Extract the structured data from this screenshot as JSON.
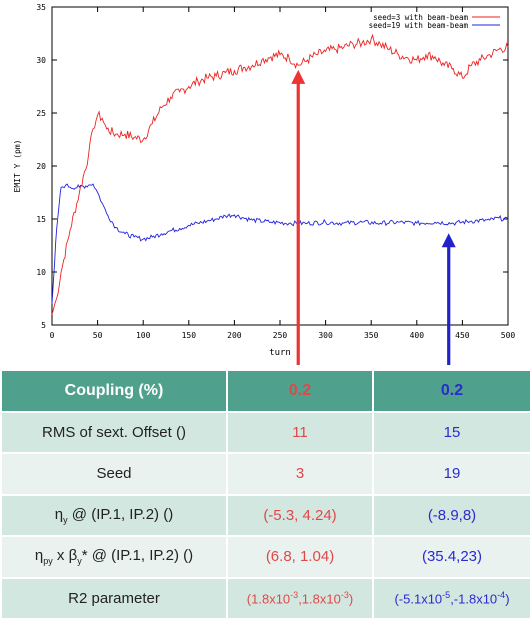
{
  "chart_data": {
    "type": "line",
    "xlabel": "turn",
    "ylabel": "EMIT Y (pm)",
    "xlim": [
      0,
      500
    ],
    "ylim": [
      5,
      35
    ],
    "xticks": [
      0,
      50,
      100,
      150,
      200,
      250,
      300,
      350,
      400,
      450,
      500
    ],
    "yticks": [
      5,
      10,
      15,
      20,
      25,
      30,
      35
    ],
    "grid": false,
    "legend_position": "top-right",
    "series": [
      {
        "name": "seed=3 with beam-beam",
        "color": "#ee2222",
        "x": [
          0,
          5,
          10,
          20,
          30,
          40,
          45,
          50,
          55,
          60,
          70,
          80,
          90,
          100,
          110,
          120,
          130,
          140,
          150,
          160,
          170,
          180,
          190,
          200,
          210,
          220,
          230,
          240,
          250,
          260,
          270,
          280,
          290,
          300,
          310,
          320,
          330,
          340,
          350,
          360,
          370,
          380,
          390,
          400,
          410,
          420,
          430,
          440,
          450,
          460,
          470,
          480,
          490,
          500
        ],
        "y": [
          6,
          7.5,
          10,
          14,
          17.5,
          21,
          23.5,
          24.8,
          24.5,
          23.5,
          23,
          23,
          22.7,
          22.5,
          24,
          25.5,
          26.5,
          27,
          27.5,
          28,
          28.3,
          28.5,
          28.8,
          29,
          29.3,
          29.5,
          30,
          30.3,
          30.5,
          30.2,
          29.5,
          30,
          30.5,
          30.8,
          31,
          31.2,
          31.5,
          31.6,
          32,
          31.5,
          31,
          30.5,
          30.2,
          30,
          30.5,
          30.3,
          29.5,
          29.2,
          28.3,
          29.5,
          30,
          30.5,
          31,
          31.2
        ]
      },
      {
        "name": "seed=19 with beam-beam",
        "color": "#2222dd",
        "x": [
          0,
          3,
          5,
          8,
          10,
          15,
          20,
          30,
          40,
          45,
          50,
          55,
          60,
          70,
          80,
          90,
          100,
          110,
          120,
          130,
          140,
          150,
          160,
          170,
          180,
          190,
          200,
          210,
          220,
          240,
          260,
          280,
          300,
          320,
          340,
          360,
          380,
          400,
          420,
          440,
          460,
          480,
          490,
          500
        ],
        "y": [
          7,
          11,
          14,
          16.5,
          18,
          18.2,
          18,
          18,
          18.2,
          18.3,
          17.5,
          16.5,
          15.5,
          14.2,
          13.6,
          13.3,
          13.1,
          13.3,
          13.6,
          13.9,
          14.1,
          14.4,
          14.6,
          14.8,
          15,
          15.3,
          15.4,
          15.1,
          14.9,
          14.7,
          14.6,
          14.6,
          14.7,
          14.6,
          14.7,
          14.6,
          14.7,
          14.6,
          14.7,
          14.6,
          14.8,
          14.9,
          15.1,
          14.9
        ]
      }
    ],
    "annotations": [
      {
        "label": "0.2",
        "x": 270,
        "color": "#ee3333"
      },
      {
        "label": "0.2",
        "x": 435,
        "color": "#2222cc"
      }
    ]
  },
  "table": {
    "header": [
      "Coupling (%)",
      "0.2",
      "0.2"
    ],
    "rows": [
      [
        "RMS of sext. Offset ()",
        "11",
        "15"
      ],
      [
        "Seed",
        "3",
        "19"
      ],
      [
        "ηy @ (IP.1, IP.2) ()",
        "(-5.3, 4.24)",
        "(-8.9,8)"
      ],
      [
        "ηpy x βy* @ (IP.1, IP.2) ()",
        "(6.8, 1.04)",
        "(35.4,23)"
      ],
      [
        "R2 parameter",
        "(1.8x10-3,1.8x10-3)",
        "(-5.1x10-5,-1.8x10-4)"
      ]
    ],
    "colors": {
      "seed3": "#e04848",
      "seed19": "#2a2ad0",
      "header_bg": "#4fa08c"
    }
  }
}
